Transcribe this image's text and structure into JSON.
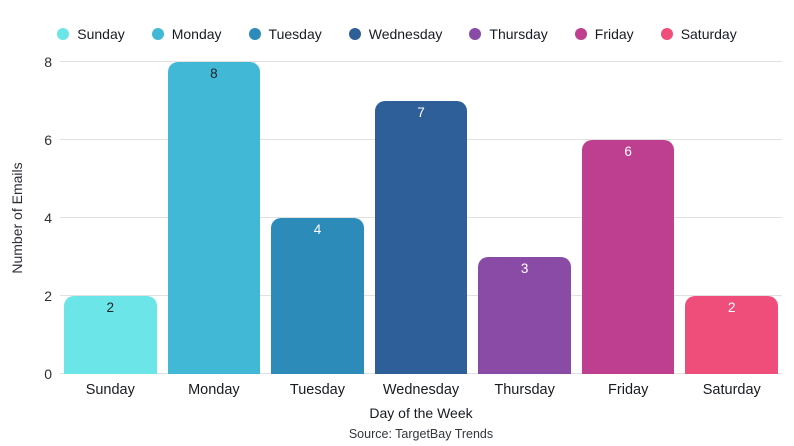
{
  "chart_data": {
    "type": "bar",
    "title": "",
    "categories": [
      "Sunday",
      "Monday",
      "Tuesday",
      "Wednesday",
      "Thursday",
      "Friday",
      "Saturday"
    ],
    "values": [
      2,
      8,
      4,
      7,
      3,
      6,
      2
    ],
    "colors": [
      "#6CE5E8",
      "#41B8D5",
      "#2D8BBA",
      "#2F5F98",
      "#8A4BA6",
      "#BE3F8F",
      "#EF4E7B"
    ],
    "value_label_colors": [
      "#1f2328",
      "#1f2328",
      "#ffffff",
      "#ffffff",
      "#ffffff",
      "#ffffff",
      "#ffffff"
    ],
    "xlabel": "Day of the Week",
    "ylabel": "Number of Emails",
    "ylim": [
      0,
      8
    ],
    "yticks": [
      0,
      2,
      4,
      6,
      8
    ],
    "grid": true,
    "gridline_color": "#e1e1e1",
    "legend_position": "top",
    "legend_entries": [
      "Sunday",
      "Monday",
      "Tuesday",
      "Wednesday",
      "Thursday",
      "Friday",
      "Saturday"
    ],
    "source": "Source: TargetBay Trends"
  }
}
